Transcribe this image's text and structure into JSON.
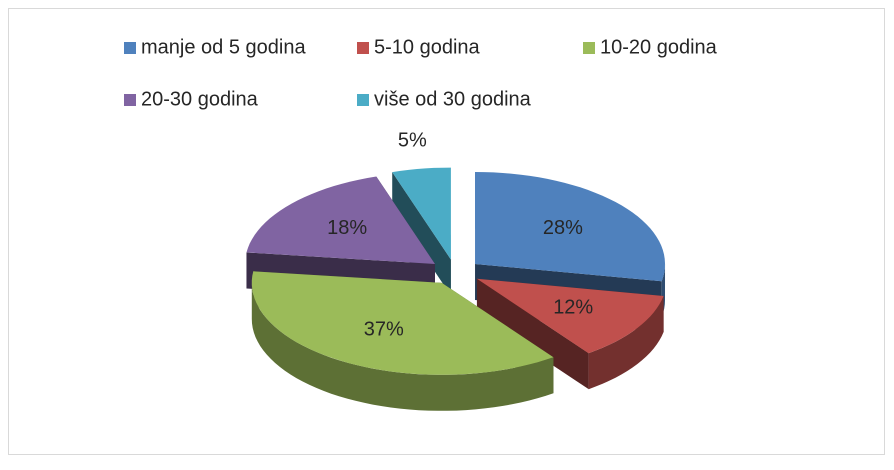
{
  "chart_data": {
    "type": "pie",
    "categories": [
      "manje od 5 godina",
      "5-10 godina",
      "10-20 godina",
      "20-30 godina",
      "više od 30 godina"
    ],
    "values": [
      28,
      12,
      37,
      18,
      5
    ],
    "value_labels": [
      "28%",
      "12%",
      "37%",
      "18%",
      "5%"
    ],
    "colors": [
      "#4f81bd",
      "#c0504d",
      "#9bbb59",
      "#8064a2",
      "#4bacc6"
    ],
    "legend": "top"
  }
}
